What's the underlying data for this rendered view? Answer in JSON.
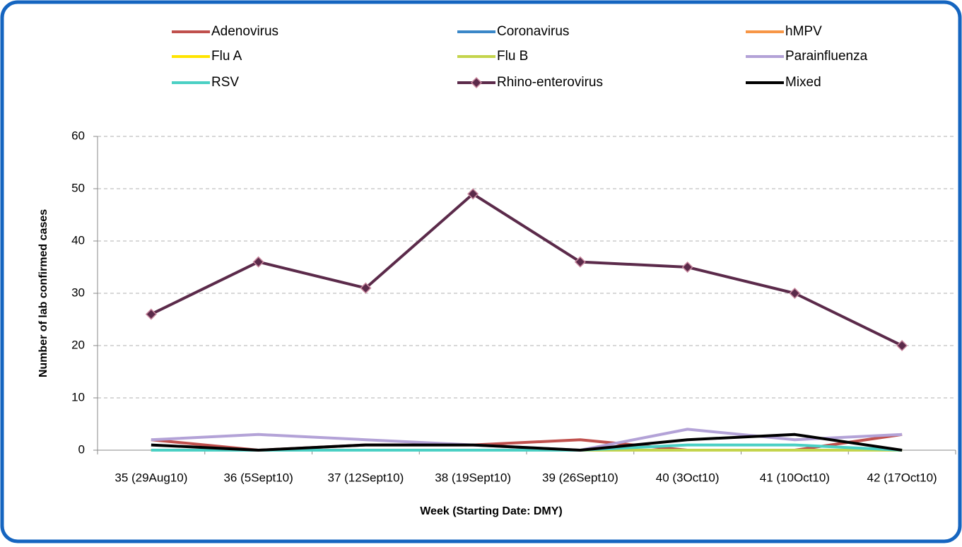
{
  "chart_data": {
    "type": "line",
    "x_label": "Week (Starting Date: DMY)",
    "y_label": "Number of lab confirmed cases",
    "categories": [
      "35 (29Aug10)",
      "36 (5Sept10)",
      "37 (12Sept10)",
      "38 (19Sept10)",
      "39 (26Sept10)",
      "40 (3Oct10)",
      "41 (10Oct10)",
      "42 (17Oct10)"
    ],
    "series": [
      {
        "name": "Adenovirus",
        "color": "#c0504d",
        "values": [
          2,
          0,
          1,
          1,
          2,
          0,
          0,
          3
        ]
      },
      {
        "name": "Coronavirus",
        "color": "#3a87c8",
        "values": [
          0,
          0,
          0,
          0,
          0,
          0,
          0,
          0
        ]
      },
      {
        "name": "hMPV",
        "color": "#f79646",
        "values": [
          0,
          0,
          0,
          0,
          0,
          0,
          0,
          0
        ]
      },
      {
        "name": "Flu A",
        "color": "#ffe400",
        "values": [
          0,
          0,
          0,
          0,
          0,
          0,
          0,
          0
        ]
      },
      {
        "name": "Flu B",
        "color": "#c4d44c",
        "values": [
          0,
          0,
          0,
          0,
          0,
          0,
          0,
          0
        ]
      },
      {
        "name": "Parainfluenza",
        "color": "#b3a2d7",
        "values": [
          2,
          3,
          2,
          1,
          0,
          4,
          2,
          3
        ]
      },
      {
        "name": "RSV",
        "color": "#4bd0c4",
        "values": [
          0,
          0,
          0,
          0,
          0,
          1,
          1,
          0
        ]
      },
      {
        "name": "Rhino-enterovirus",
        "color": "#5b2a4a",
        "marker": "diamond",
        "values": [
          26,
          36,
          31,
          49,
          36,
          35,
          30,
          20
        ]
      },
      {
        "name": "Mixed",
        "color": "#000000",
        "values": [
          1,
          0,
          1,
          1,
          0,
          2,
          3,
          0
        ]
      }
    ],
    "ylim": [
      0,
      60
    ],
    "yticks": [
      0,
      10,
      20,
      30,
      40,
      50,
      60
    ],
    "grid": true
  }
}
